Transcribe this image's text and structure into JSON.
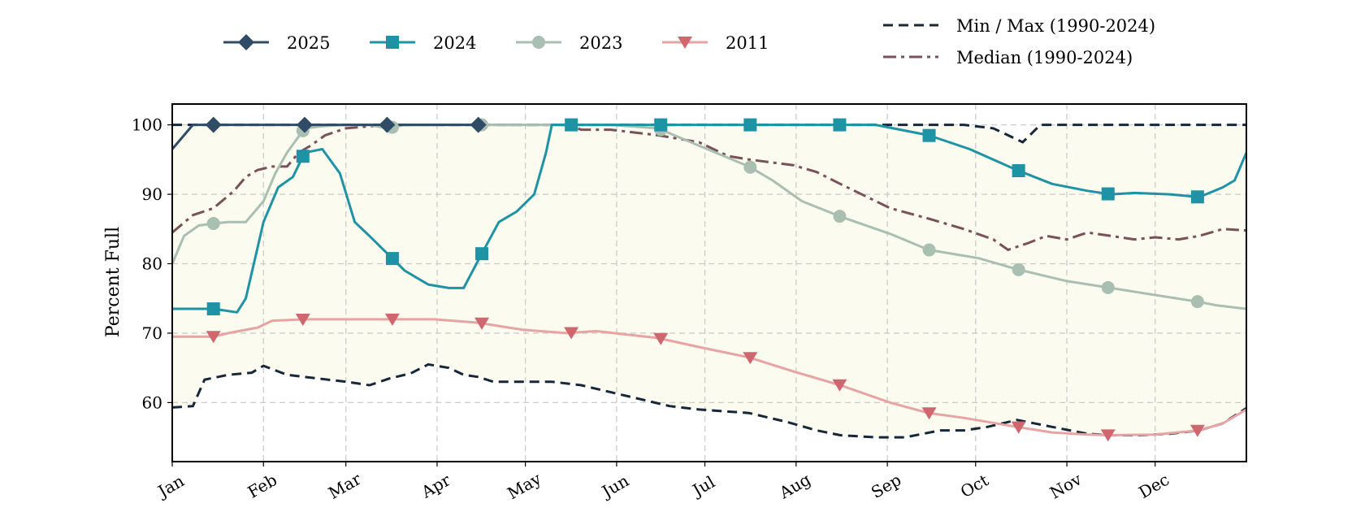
{
  "chart_data": {
    "type": "line",
    "ylabel": "Percent Full",
    "xlabel": "",
    "ylim": [
      51.5,
      103
    ],
    "yticks": [
      60,
      70,
      80,
      90,
      100
    ],
    "xticks": [
      "Jan",
      "Feb",
      "Mar",
      "Apr",
      "May",
      "Jun",
      "Jul",
      "Aug",
      "Sep",
      "Oct",
      "Nov",
      "Dec"
    ],
    "x_domain": [
      1,
      366
    ],
    "grid": true,
    "legend_position": "top",
    "band_color": "#fbfbf0",
    "series": [
      {
        "name": "2025",
        "color": "#2f4b66",
        "marker": "diamond",
        "style": "solid",
        "x": [
          1,
          8,
          15,
          46,
          74,
          105
        ],
        "y": [
          96.5,
          100,
          100,
          100,
          100,
          100
        ],
        "markers_x": [
          15,
          46,
          74,
          105
        ],
        "markers_y": [
          100,
          100,
          100,
          100
        ]
      },
      {
        "name": "2024",
        "color": "#1e93a5",
        "marker": "square",
        "style": "solid",
        "x": [
          1,
          15,
          23,
          26,
          32,
          37,
          42,
          46,
          52,
          58,
          63,
          68,
          74,
          80,
          88,
          95,
          100,
          105,
          112,
          118,
          124,
          128,
          130,
          135,
          166,
          197,
          228,
          240,
          258,
          272,
          288,
          300,
          312,
          320,
          328,
          340,
          350,
          358,
          362,
          366
        ],
        "y": [
          73.5,
          73.5,
          73,
          75,
          86,
          91,
          92.5,
          96,
          96.5,
          93,
          86,
          84,
          81.5,
          79,
          77,
          76.5,
          76.5,
          80.5,
          86,
          87.5,
          90,
          96,
          100,
          100,
          100,
          100,
          100,
          100,
          98.5,
          96.5,
          93.5,
          91.5,
          90.5,
          90,
          90.2,
          90,
          89.6,
          91,
          92,
          96
        ]
      },
      {
        "name": "2023",
        "color": "#a9bfb1",
        "marker": "circle",
        "style": "solid",
        "x": [
          1,
          5,
          10,
          15,
          20,
          26,
          32,
          36,
          40,
          46,
          52,
          60,
          68,
          74,
          80,
          105,
          135,
          150,
          166,
          180,
          197,
          205,
          215,
          228,
          245,
          258,
          275,
          288,
          305,
          320,
          335,
          350,
          356,
          366
        ],
        "y": [
          80,
          84,
          85.5,
          85.8,
          86,
          86,
          89,
          93,
          96,
          99.5,
          99.8,
          100,
          100,
          99.5,
          100,
          100,
          100,
          100,
          99.5,
          97,
          94,
          92,
          89,
          86.8,
          84.3,
          82,
          80.8,
          79.2,
          77.5,
          76.5,
          75.5,
          74.5,
          74,
          73.5
        ]
      },
      {
        "name": "2011",
        "color": "#e8a3a3",
        "marker_color": "#d0666e",
        "marker": "triangle-down",
        "style": "solid",
        "x": [
          1,
          15,
          20,
          30,
          35,
          46,
          60,
          74,
          90,
          105,
          120,
          135,
          145,
          166,
          180,
          197,
          212,
          228,
          245,
          258,
          270,
          288,
          300,
          312,
          320,
          335,
          350,
          358,
          366
        ],
        "y": [
          69.5,
          69.5,
          70,
          70.8,
          71.8,
          72,
          72,
          72,
          72,
          71.5,
          70.5,
          70,
          70.3,
          69.3,
          68,
          66.5,
          64.5,
          62.5,
          60,
          58.5,
          57.8,
          56.5,
          55.7,
          55.4,
          55.3,
          55.4,
          56,
          57,
          59
        ]
      },
      {
        "name": "Median (1990-2024)",
        "color": "#7a5059",
        "marker": "none",
        "style": "dashdot",
        "x": [
          1,
          8,
          15,
          22,
          26,
          30,
          35,
          40,
          44,
          48,
          53,
          60,
          74,
          90,
          105,
          120,
          135,
          140,
          150,
          166,
          180,
          190,
          197,
          212,
          220,
          228,
          245,
          258,
          270,
          280,
          285,
          292,
          298,
          305,
          312,
          320,
          328,
          335,
          343,
          350,
          358,
          366
        ],
        "y": [
          84.5,
          87,
          88,
          90.5,
          92.5,
          93.5,
          94,
          94,
          96,
          97,
          98.5,
          99.5,
          100,
          100,
          100,
          100,
          100,
          99.3,
          99.3,
          98.5,
          97.5,
          95.5,
          95,
          94.2,
          93.2,
          91.5,
          88,
          86.5,
          85,
          83.5,
          82,
          83,
          84,
          83.5,
          84.5,
          84,
          83.5,
          83.8,
          83.5,
          84,
          85,
          84.8
        ]
      }
    ],
    "band": {
      "name": "Min / Max (1990-2024)",
      "color": "#17273a",
      "style": "dashed",
      "max_x": [
        1,
        270,
        280,
        285,
        290,
        296,
        310,
        366
      ],
      "max_y": [
        100,
        100,
        99.5,
        98.5,
        97.5,
        100,
        100,
        100
      ],
      "min_x": [
        1,
        8,
        12,
        20,
        28,
        32,
        40,
        50,
        60,
        68,
        75,
        82,
        88,
        95,
        100,
        105,
        110,
        120,
        130,
        140,
        150,
        160,
        170,
        180,
        197,
        210,
        220,
        228,
        240,
        250,
        262,
        270,
        278,
        288,
        300,
        312,
        320,
        330,
        340,
        350,
        358,
        366
      ],
      "min_y": [
        59.3,
        59.5,
        63.3,
        64,
        64.3,
        65.3,
        64,
        63.5,
        63,
        62.5,
        63.5,
        64.2,
        65.5,
        65,
        64,
        63.7,
        63,
        63,
        63,
        62.5,
        61.5,
        60.5,
        59.5,
        59,
        58.5,
        57.2,
        56,
        55.3,
        55,
        55,
        56,
        56,
        56.5,
        57.5,
        56.5,
        55.5,
        55.3,
        55.3,
        55.5,
        56,
        57,
        59.2
      ]
    },
    "legend_left": [
      "2025",
      "2024",
      "2023",
      "2011"
    ],
    "legend_right": [
      "Min / Max (1990-2024)",
      "Median (1990-2024)"
    ]
  }
}
